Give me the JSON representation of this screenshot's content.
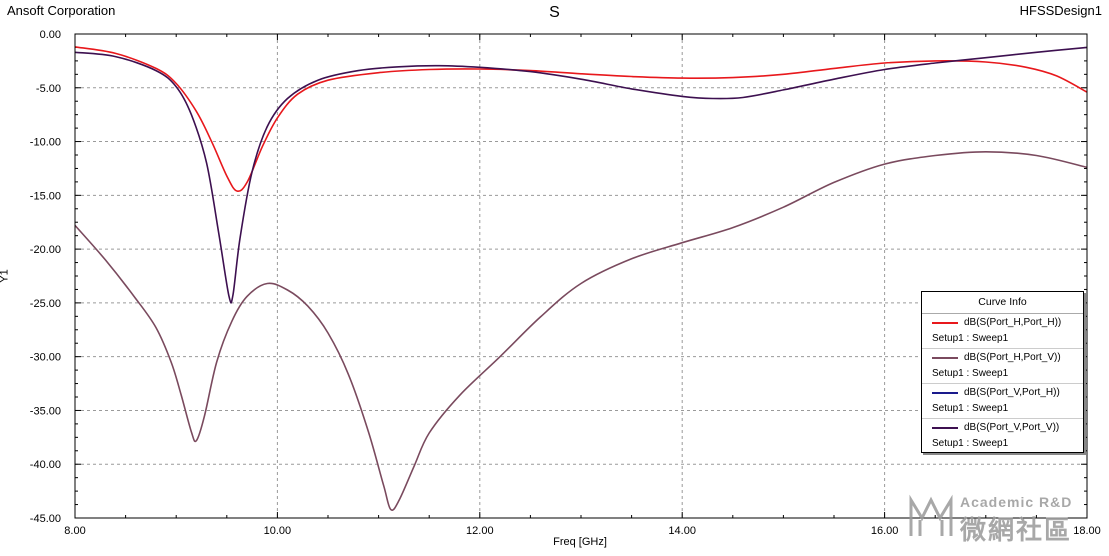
{
  "header": {
    "left": "Ansoft Corporation",
    "center": "S",
    "right": "HFSSDesign1"
  },
  "legend": {
    "title": "Curve Info",
    "items": [
      {
        "name": "dB(S(Port_H,Port_H))",
        "setup": "Setup1 : Sweep1",
        "color": "#e8181c"
      },
      {
        "name": "dB(S(Port_H,Port_V))",
        "setup": "Setup1 : Sweep1",
        "color": "#7a4a5e"
      },
      {
        "name": "dB(S(Port_V,Port_H))",
        "setup": "Setup1 : Sweep1",
        "color": "#1a1a8c"
      },
      {
        "name": "dB(S(Port_V,Port_V))",
        "setup": "Setup1 : Sweep1",
        "color": "#3d1050"
      }
    ]
  },
  "watermark": {
    "line1": "Academic R&D",
    "line2": "微網社區"
  },
  "chart_data": {
    "type": "line",
    "title": "S",
    "xlabel": "Freq [GHz]",
    "ylabel": "Y1",
    "xlim": [
      8.0,
      18.0
    ],
    "ylim": [
      -45.0,
      0.0
    ],
    "x_ticks": [
      8,
      10,
      12,
      14,
      16,
      18
    ],
    "x_tick_labels": [
      "8.00",
      "10.00",
      "12.00",
      "14.00",
      "16.00",
      "18.00"
    ],
    "y_ticks": [
      0,
      -5,
      -10,
      -15,
      -20,
      -25,
      -30,
      -35,
      -40,
      -45
    ],
    "y_tick_labels": [
      "0.00",
      "-5.00",
      "-10.00",
      "-15.00",
      "-20.00",
      "-25.00",
      "-30.00",
      "-35.00",
      "-40.00",
      "-45.00"
    ],
    "grid": true,
    "legend_position": "right",
    "series": [
      {
        "name": "dB(S(Port_H,Port_H))",
        "color": "#e8181c",
        "points": [
          [
            8.0,
            -1.2
          ],
          [
            8.4,
            -1.8
          ],
          [
            8.8,
            -3.2
          ],
          [
            9.0,
            -4.6
          ],
          [
            9.2,
            -7.2
          ],
          [
            9.35,
            -10.0
          ],
          [
            9.5,
            -13.2
          ],
          [
            9.6,
            -14.6
          ],
          [
            9.7,
            -13.8
          ],
          [
            9.85,
            -10.5
          ],
          [
            10.0,
            -7.8
          ],
          [
            10.2,
            -5.6
          ],
          [
            10.5,
            -4.3
          ],
          [
            11.0,
            -3.6
          ],
          [
            11.5,
            -3.3
          ],
          [
            12.0,
            -3.25
          ],
          [
            12.5,
            -3.4
          ],
          [
            13.0,
            -3.7
          ],
          [
            13.5,
            -3.95
          ],
          [
            14.0,
            -4.1
          ],
          [
            14.5,
            -4.05
          ],
          [
            15.0,
            -3.75
          ],
          [
            15.5,
            -3.2
          ],
          [
            16.0,
            -2.7
          ],
          [
            16.5,
            -2.5
          ],
          [
            17.0,
            -2.6
          ],
          [
            17.4,
            -3.1
          ],
          [
            17.7,
            -3.9
          ],
          [
            18.0,
            -5.4
          ]
        ]
      },
      {
        "name": "dB(S(Port_H,Port_V))",
        "color": "#7a4a5e",
        "points": [
          [
            8.0,
            -17.8
          ],
          [
            8.3,
            -21.0
          ],
          [
            8.6,
            -24.6
          ],
          [
            8.8,
            -27.3
          ],
          [
            8.95,
            -30.5
          ],
          [
            9.05,
            -33.6
          ],
          [
            9.15,
            -37.0
          ],
          [
            9.2,
            -37.8
          ],
          [
            9.28,
            -35.5
          ],
          [
            9.4,
            -30.5
          ],
          [
            9.55,
            -26.7
          ],
          [
            9.7,
            -24.4
          ],
          [
            9.9,
            -23.2
          ],
          [
            10.1,
            -23.8
          ],
          [
            10.3,
            -25.3
          ],
          [
            10.5,
            -27.8
          ],
          [
            10.7,
            -31.6
          ],
          [
            10.9,
            -37.0
          ],
          [
            11.05,
            -42.0
          ],
          [
            11.12,
            -44.2
          ],
          [
            11.2,
            -43.4
          ],
          [
            11.35,
            -40.2
          ],
          [
            11.5,
            -37.1
          ],
          [
            11.8,
            -33.6
          ],
          [
            12.2,
            -30.0
          ],
          [
            12.6,
            -26.3
          ],
          [
            13.0,
            -23.2
          ],
          [
            13.5,
            -20.9
          ],
          [
            14.0,
            -19.4
          ],
          [
            14.5,
            -18.0
          ],
          [
            15.0,
            -16.1
          ],
          [
            15.5,
            -13.8
          ],
          [
            16.0,
            -12.1
          ],
          [
            16.5,
            -11.3
          ],
          [
            17.0,
            -10.95
          ],
          [
            17.5,
            -11.3
          ],
          [
            18.0,
            -12.4
          ]
        ]
      },
      {
        "name": "dB(S(Port_V,Port_H))",
        "color": "#1a1a8c",
        "points": []
      },
      {
        "name": "dB(S(Port_V,Port_V))",
        "color": "#3d1050",
        "points": [
          [
            8.0,
            -1.7
          ],
          [
            8.4,
            -2.1
          ],
          [
            8.8,
            -3.4
          ],
          [
            9.0,
            -4.9
          ],
          [
            9.15,
            -7.5
          ],
          [
            9.3,
            -12.0
          ],
          [
            9.42,
            -18.5
          ],
          [
            9.52,
            -24.3
          ],
          [
            9.56,
            -24.3
          ],
          [
            9.63,
            -19.0
          ],
          [
            9.75,
            -12.8
          ],
          [
            9.9,
            -8.6
          ],
          [
            10.1,
            -6.0
          ],
          [
            10.4,
            -4.3
          ],
          [
            10.8,
            -3.4
          ],
          [
            11.2,
            -3.05
          ],
          [
            11.6,
            -2.95
          ],
          [
            12.0,
            -3.1
          ],
          [
            12.5,
            -3.5
          ],
          [
            13.0,
            -4.2
          ],
          [
            13.5,
            -5.1
          ],
          [
            14.0,
            -5.8
          ],
          [
            14.3,
            -6.0
          ],
          [
            14.6,
            -5.9
          ],
          [
            15.0,
            -5.2
          ],
          [
            15.5,
            -4.2
          ],
          [
            16.0,
            -3.3
          ],
          [
            16.5,
            -2.7
          ],
          [
            17.0,
            -2.2
          ],
          [
            17.5,
            -1.7
          ],
          [
            18.0,
            -1.25
          ]
        ]
      }
    ]
  }
}
